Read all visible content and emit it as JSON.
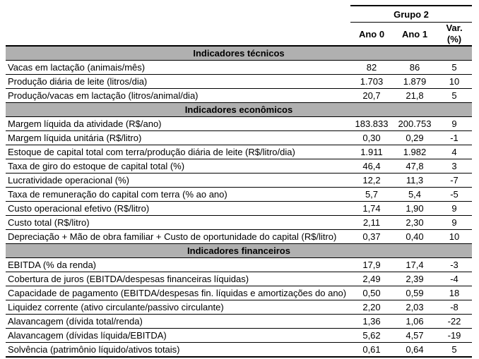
{
  "table": {
    "group_header": "Grupo 2",
    "columns": [
      "Ano 0",
      "Ano 1",
      "Var.\n(%)"
    ],
    "sections": [
      {
        "title": "Indicadores técnicos",
        "rows": [
          {
            "label": "Vacas em lactação (animais/mês)",
            "ano0": "82",
            "ano1": "86",
            "var": "5"
          },
          {
            "label": "Produção diária de leite (litros/dia)",
            "ano0": "1.703",
            "ano1": "1.879",
            "var": "10"
          },
          {
            "label": "Produção/vacas em lactação (litros/animal/dia)",
            "ano0": "20,7",
            "ano1": "21,8",
            "var": "5"
          }
        ]
      },
      {
        "title": "Indicadores econômicos",
        "rows": [
          {
            "label": "Margem líquida da atividade (R$/ano)",
            "ano0": "183.833",
            "ano1": "200.753",
            "var": "9"
          },
          {
            "label": "Margem líquida unitária (R$/litro)",
            "ano0": "0,30",
            "ano1": "0,29",
            "var": "-1"
          },
          {
            "label": "Estoque de capital total com terra/produção diária de leite (R$/litro/dia)",
            "ano0": "1.911",
            "ano1": "1.982",
            "var": "4"
          },
          {
            "label": "Taxa de giro do estoque de capital total (%)",
            "ano0": "46,4",
            "ano1": "47,8",
            "var": "3"
          },
          {
            "label": "Lucratividade operacional (%)",
            "ano0": "12,2",
            "ano1": "11,3",
            "var": "-7"
          },
          {
            "label": "Taxa de remuneração do capital com terra (% ao ano)",
            "ano0": "5,7",
            "ano1": "5,4",
            "var": "-5"
          },
          {
            "label": "Custo operacional efetivo (R$/litro)",
            "ano0": "1,74",
            "ano1": "1,90",
            "var": "9"
          },
          {
            "label": "Custo total (R$/litro)",
            "ano0": "2,11",
            "ano1": "2,30",
            "var": "9"
          },
          {
            "label": "Depreciação + Mão de obra familiar + Custo de oportunidade do capital (R$/litro)",
            "ano0": "0,37",
            "ano1": "0,40",
            "var": "10"
          }
        ]
      },
      {
        "title": "Indicadores financeiros",
        "rows": [
          {
            "label": "EBITDA (% da renda)",
            "ano0": "17,9",
            "ano1": "17,4",
            "var": "-3"
          },
          {
            "label": "Cobertura de juros (EBITDA/despesas financeiras líquidas)",
            "ano0": "2,49",
            "ano1": "2,39",
            "var": "-4"
          },
          {
            "label": "Capacidade de pagamento (EBITDA/despesas fin. líquidas e amortizações do ano)",
            "ano0": "0,50",
            "ano1": "0,59",
            "var": "18"
          },
          {
            "label": "Liquidez corrente (ativo circulante/passivo circulante)",
            "ano0": "2,20",
            "ano1": "2,03",
            "var": "-8"
          },
          {
            "label": "Alavancagem (dívida total/renda)",
            "ano0": "1,36",
            "ano1": "1,06",
            "var": "-22"
          },
          {
            "label": "Alavancagem (dívidas líquida/EBITDA)",
            "ano0": "5,62",
            "ano1": "4,57",
            "var": "-19"
          },
          {
            "label": "Solvência (patrimônio líquido/ativos totais)",
            "ano0": "0,61",
            "ano1": "0,64",
            "var": "5"
          }
        ]
      }
    ]
  },
  "colors": {
    "section_band_bg": "#b0b0b0",
    "border": "#000000",
    "background": "#ffffff",
    "text": "#000000"
  }
}
